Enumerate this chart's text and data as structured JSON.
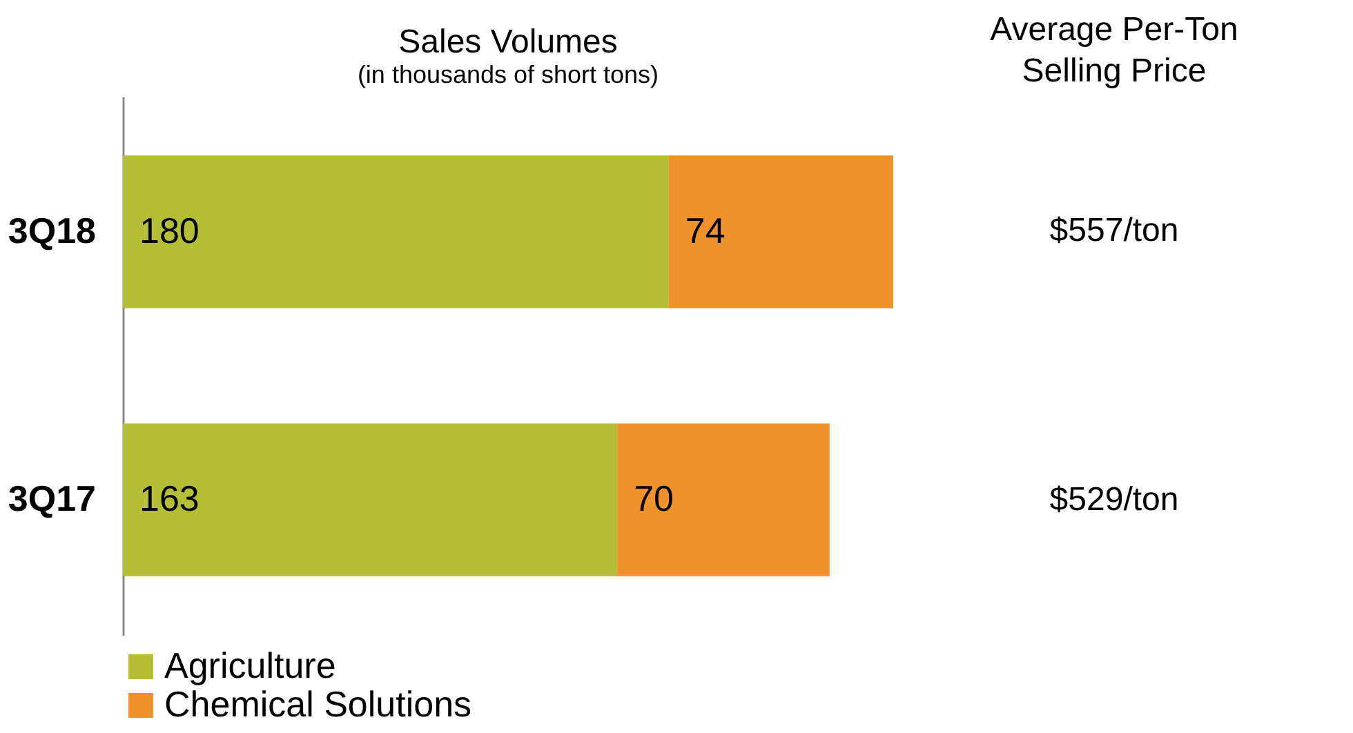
{
  "chart_data": {
    "type": "bar",
    "orientation": "horizontal",
    "stacked": true,
    "title": "Sales Volumes",
    "subtitle": "(in thousands of short tons)",
    "categories": [
      "3Q18",
      "3Q17"
    ],
    "series": [
      {
        "name": "Agriculture",
        "color": "#b5be35",
        "values": [
          180,
          163
        ]
      },
      {
        "name": "Chemical Solutions",
        "color": "#f0922b",
        "values": [
          74,
          70
        ]
      }
    ],
    "data_labels": true,
    "legend": "bottom",
    "grid": false,
    "annotations": [
      "Average Per-Ton Selling Price",
      "$557/ton",
      "$529/ton"
    ]
  }
}
